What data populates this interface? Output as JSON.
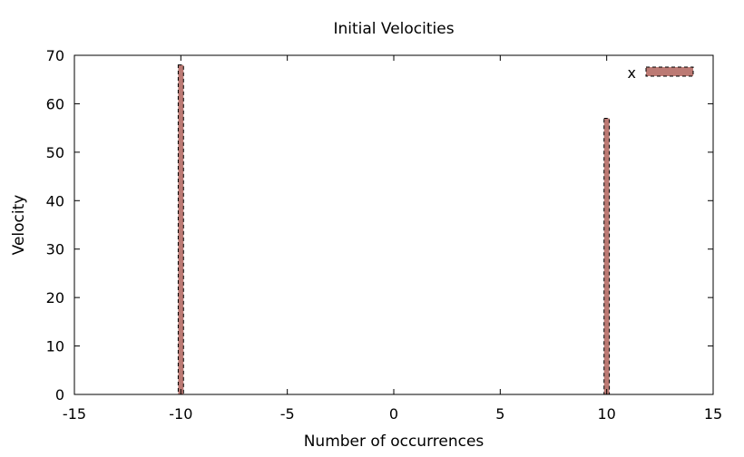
{
  "chart_data": {
    "type": "bar",
    "title": "Initial Velocities",
    "xlabel": "Number of occurrences",
    "ylabel": "Velocity",
    "xlim": [
      -15,
      15
    ],
    "ylim": [
      0,
      70
    ],
    "xticks": [
      -15,
      -10,
      -5,
      0,
      5,
      10,
      15
    ],
    "yticks": [
      0,
      10,
      20,
      30,
      40,
      50,
      60,
      70
    ],
    "grid": false,
    "legend_position": "top-right",
    "series": [
      {
        "name": "x",
        "color": "#bc7a74",
        "border_style": "dashed",
        "points": [
          {
            "x": -10,
            "y": 68
          },
          {
            "x": 10,
            "y": 57
          }
        ],
        "bar_width": 0.25
      }
    ]
  }
}
